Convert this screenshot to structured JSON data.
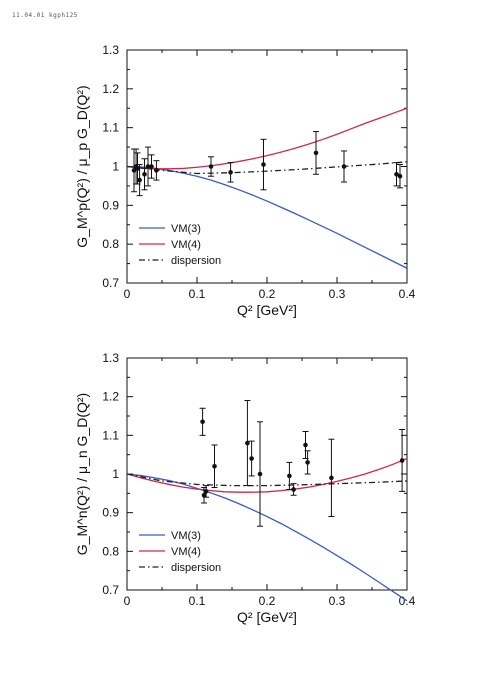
{
  "header": {
    "stamp": "11.04.01 kgph125"
  },
  "chart_data": [
    {
      "type": "line",
      "title": "",
      "xlabel": "Q² [GeV²]",
      "ylabel": "G_M^p(Q²) / μ_p G_D(Q²)",
      "xlim": [
        0,
        0.4
      ],
      "ylim": [
        0.7,
        1.3
      ],
      "xticks": [
        0,
        0.1,
        0.2,
        0.3,
        0.4
      ],
      "xtick_labels": [
        "0",
        "0.1",
        "0.2",
        "0.3",
        "0.4"
      ],
      "yticks": [
        0.7,
        0.8,
        0.9,
        1.0,
        1.1,
        1.2,
        1.3
      ],
      "ytick_labels": [
        "0.7",
        "0.8",
        "0.9",
        "1",
        "1.1",
        "1.2",
        "1.3"
      ],
      "legend_position": "bottom-left",
      "series": [
        {
          "name": "VM(3)",
          "color": "#3b5bc4",
          "style": "solid",
          "x": [
            0,
            0.02,
            0.04,
            0.06,
            0.08,
            0.1,
            0.12,
            0.14,
            0.16,
            0.18,
            0.2,
            0.22,
            0.24,
            0.26,
            0.28,
            0.3,
            0.32,
            0.34,
            0.36,
            0.38,
            0.4
          ],
          "y": [
            1.0,
            0.999,
            0.995,
            0.99,
            0.983,
            0.975,
            0.965,
            0.953,
            0.94,
            0.926,
            0.911,
            0.895,
            0.879,
            0.862,
            0.845,
            0.828,
            0.81,
            0.792,
            0.774,
            0.756,
            0.738
          ]
        },
        {
          "name": "VM(4)",
          "color": "#cc2a4a",
          "style": "solid",
          "x": [
            0,
            0.02,
            0.04,
            0.06,
            0.08,
            0.1,
            0.12,
            0.14,
            0.16,
            0.18,
            0.2,
            0.22,
            0.24,
            0.26,
            0.28,
            0.3,
            0.32,
            0.34,
            0.36,
            0.38,
            0.4
          ],
          "y": [
            1.0,
            0.996,
            0.994,
            0.994,
            0.995,
            0.998,
            1.002,
            1.007,
            1.013,
            1.02,
            1.028,
            1.037,
            1.047,
            1.058,
            1.07,
            1.083,
            1.097,
            1.111,
            1.124,
            1.137,
            1.15
          ]
        },
        {
          "name": "dispersion",
          "color": "#222222",
          "style": "dashdot",
          "x": [
            0,
            0.05,
            0.1,
            0.15,
            0.2,
            0.25,
            0.3,
            0.35,
            0.4
          ],
          "y": [
            1.0,
            0.99,
            0.982,
            0.984,
            0.988,
            0.993,
            0.999,
            1.005,
            1.012
          ]
        }
      ],
      "points": [
        {
          "x": 0.01,
          "y": 0.99,
          "err": 0.055
        },
        {
          "x": 0.013,
          "y": 1.0,
          "err": 0.045
        },
        {
          "x": 0.015,
          "y": 0.995,
          "err": 0.04
        },
        {
          "x": 0.018,
          "y": 0.965,
          "err": 0.04
        },
        {
          "x": 0.025,
          "y": 0.98,
          "err": 0.04
        },
        {
          "x": 0.03,
          "y": 1.0,
          "err": 0.05
        },
        {
          "x": 0.035,
          "y": 1.0,
          "err": 0.03
        },
        {
          "x": 0.042,
          "y": 0.99,
          "err": 0.025
        },
        {
          "x": 0.12,
          "y": 1.0,
          "err": 0.025
        },
        {
          "x": 0.148,
          "y": 0.985,
          "err": 0.025
        },
        {
          "x": 0.195,
          "y": 1.005,
          "err": 0.065
        },
        {
          "x": 0.27,
          "y": 1.035,
          "err": 0.055
        },
        {
          "x": 0.31,
          "y": 1.0,
          "err": 0.04
        },
        {
          "x": 0.385,
          "y": 0.98,
          "err": 0.03
        },
        {
          "x": 0.39,
          "y": 0.975,
          "err": 0.03
        }
      ]
    },
    {
      "type": "line",
      "title": "",
      "xlabel": "Q² [GeV²]",
      "ylabel": "G_M^n(Q²) / μ_n G_D(Q²)",
      "xlim": [
        0,
        0.4
      ],
      "ylim": [
        0.7,
        1.3
      ],
      "xticks": [
        0,
        0.1,
        0.2,
        0.3,
        0.4
      ],
      "xtick_labels": [
        "0",
        "0.1",
        "0.2",
        "0.3",
        "0.4"
      ],
      "yticks": [
        0.7,
        0.8,
        0.9,
        1.0,
        1.1,
        1.2,
        1.3
      ],
      "ytick_labels": [
        "0.7",
        "0.8",
        "0.9",
        "1",
        "1.1",
        "1.2",
        "1.3"
      ],
      "legend_position": "bottom-left",
      "series": [
        {
          "name": "VM(3)",
          "color": "#3b5bc4",
          "style": "solid",
          "x": [
            0,
            0.02,
            0.04,
            0.06,
            0.08,
            0.1,
            0.12,
            0.14,
            0.16,
            0.18,
            0.2,
            0.22,
            0.24,
            0.26,
            0.28,
            0.3,
            0.32,
            0.34,
            0.36,
            0.38,
            0.4
          ],
          "y": [
            1.0,
            0.996,
            0.99,
            0.983,
            0.974,
            0.963,
            0.951,
            0.938,
            0.923,
            0.907,
            0.89,
            0.872,
            0.852,
            0.832,
            0.811,
            0.789,
            0.767,
            0.744,
            0.72,
            0.696,
            0.672
          ]
        },
        {
          "name": "VM(4)",
          "color": "#cc2a4a",
          "style": "solid",
          "x": [
            0,
            0.02,
            0.04,
            0.06,
            0.08,
            0.1,
            0.12,
            0.14,
            0.16,
            0.18,
            0.2,
            0.22,
            0.24,
            0.26,
            0.28,
            0.3,
            0.32,
            0.34,
            0.36,
            0.38,
            0.4
          ],
          "y": [
            1.0,
            0.99,
            0.981,
            0.973,
            0.966,
            0.961,
            0.957,
            0.954,
            0.953,
            0.953,
            0.954,
            0.957,
            0.961,
            0.966,
            0.973,
            0.981,
            0.99,
            1.0,
            1.012,
            1.025,
            1.04
          ]
        },
        {
          "name": "dispersion",
          "color": "#222222",
          "style": "dashdot",
          "x": [
            0,
            0.05,
            0.1,
            0.15,
            0.2,
            0.25,
            0.3,
            0.35,
            0.4
          ],
          "y": [
            1.0,
            0.982,
            0.973,
            0.97,
            0.97,
            0.972,
            0.975,
            0.978,
            0.982
          ]
        }
      ],
      "points": [
        {
          "x": 0.108,
          "y": 1.135,
          "err": 0.035
        },
        {
          "x": 0.11,
          "y": 0.945,
          "err": 0.02
        },
        {
          "x": 0.113,
          "y": 0.955,
          "err": 0.015
        },
        {
          "x": 0.125,
          "y": 1.02,
          "err": 0.055
        },
        {
          "x": 0.172,
          "y": 1.08,
          "err": 0.11
        },
        {
          "x": 0.178,
          "y": 1.04,
          "err": 0.045
        },
        {
          "x": 0.19,
          "y": 1.0,
          "err": 0.135
        },
        {
          "x": 0.232,
          "y": 0.995,
          "err": 0.035
        },
        {
          "x": 0.238,
          "y": 0.96,
          "err": 0.015
        },
        {
          "x": 0.255,
          "y": 1.075,
          "err": 0.035
        },
        {
          "x": 0.258,
          "y": 1.03,
          "err": 0.03
        },
        {
          "x": 0.292,
          "y": 0.99,
          "err": 0.1
        },
        {
          "x": 0.393,
          "y": 1.035,
          "err": 0.08
        }
      ]
    }
  ]
}
